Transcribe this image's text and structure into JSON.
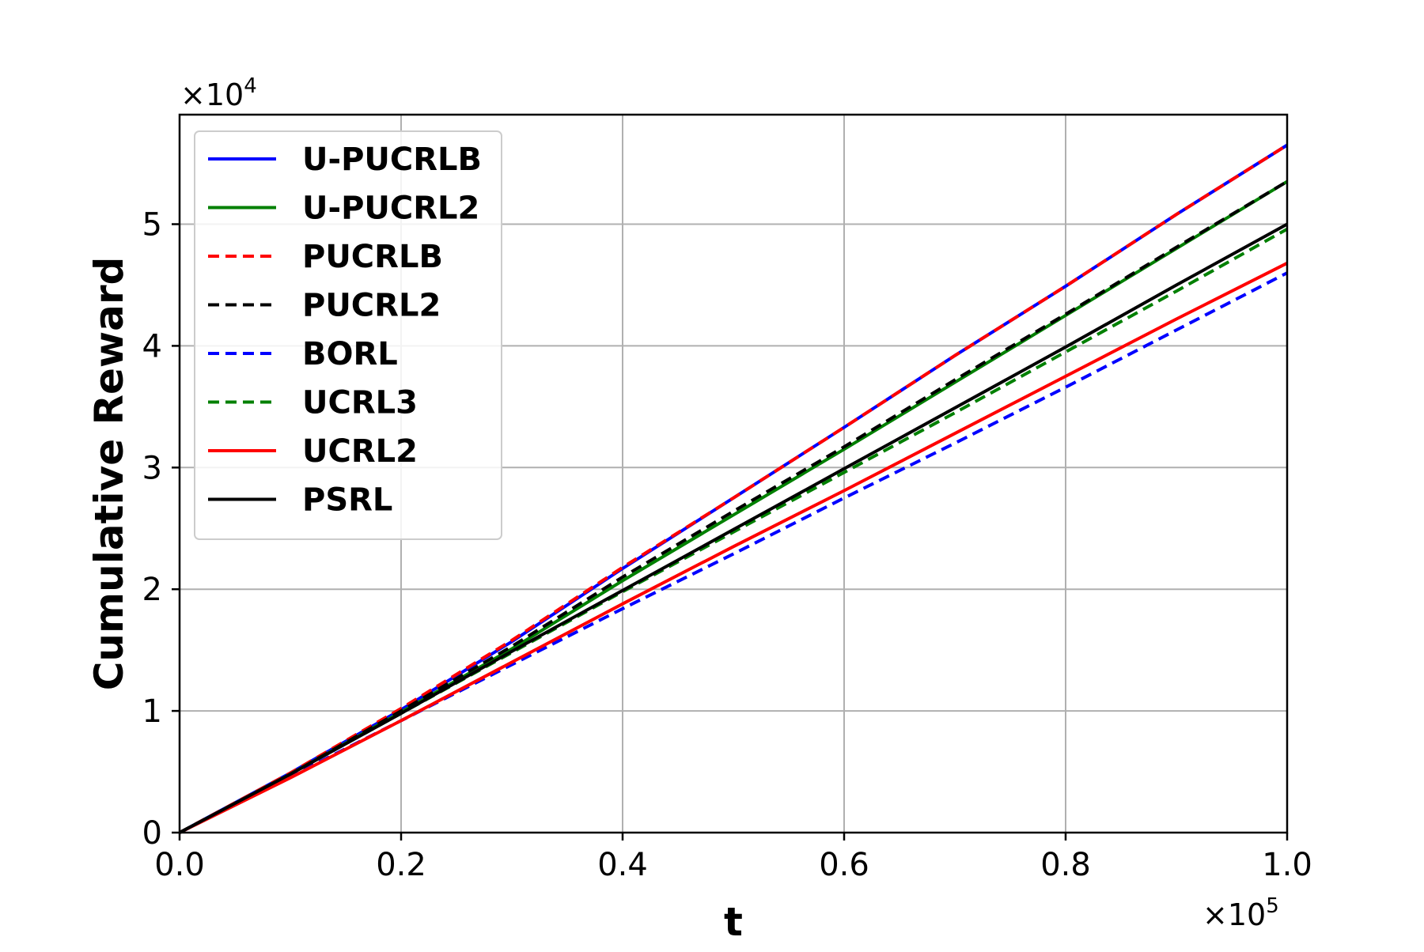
{
  "chart_data": {
    "type": "line",
    "xlabel": "t",
    "ylabel": "Cumulative Reward",
    "x_multiplier": {
      "base": "×10",
      "exp": "5"
    },
    "y_multiplier": {
      "base": "×10",
      "exp": "4"
    },
    "xlim": [
      0,
      1.0
    ],
    "ylim": [
      0,
      5.9
    ],
    "xticks": [
      0.0,
      0.2,
      0.4,
      0.6,
      0.8,
      1.0
    ],
    "xtick_labels": [
      "0.0",
      "0.2",
      "0.4",
      "0.6",
      "0.8",
      "1.0"
    ],
    "yticks": [
      0,
      1,
      2,
      3,
      4,
      5
    ],
    "ytick_labels": [
      "0",
      "1",
      "2",
      "3",
      "4",
      "5"
    ],
    "grid": true,
    "legend_position": "upper-left",
    "series": [
      {
        "name": "U-PUCRLB",
        "color": "#0000ff",
        "dash": "solid",
        "x": [
          0,
          0.1,
          0.2,
          0.3,
          0.4,
          0.5,
          0.6,
          0.7,
          0.8,
          0.9,
          1.0
        ],
        "y": [
          0,
          0.49,
          1.01,
          1.57,
          2.17,
          2.75,
          3.33,
          3.92,
          4.49,
          5.08,
          5.65
        ]
      },
      {
        "name": "U-PUCRL2",
        "color": "#008000",
        "dash": "solid",
        "x": [
          0,
          0.1,
          0.2,
          0.3,
          0.4,
          0.5,
          0.6,
          0.7,
          0.8,
          0.9,
          1.0
        ],
        "y": [
          0,
          0.48,
          0.99,
          1.51,
          2.07,
          2.61,
          3.15,
          3.7,
          4.25,
          4.8,
          5.35
        ]
      },
      {
        "name": "PUCRLB",
        "color": "#ff0000",
        "dash": "dashed",
        "x": [
          0,
          0.1,
          0.2,
          0.3,
          0.4,
          0.5,
          0.6,
          0.7,
          0.8,
          0.9,
          1.0
        ],
        "y": [
          0,
          0.49,
          1.02,
          1.58,
          2.18,
          2.75,
          3.33,
          3.92,
          4.49,
          5.08,
          5.65
        ]
      },
      {
        "name": "PUCRL2",
        "color": "#000000",
        "dash": "dashed",
        "x": [
          0,
          0.1,
          0.2,
          0.3,
          0.4,
          0.5,
          0.6,
          0.7,
          0.8,
          0.9,
          1.0
        ],
        "y": [
          0,
          0.48,
          1.0,
          1.53,
          2.1,
          2.64,
          3.17,
          3.72,
          4.26,
          4.81,
          5.35
        ]
      },
      {
        "name": "BORL",
        "color": "#0000ff",
        "dash": "dashed",
        "x": [
          0,
          0.1,
          0.2,
          0.3,
          0.4,
          0.5,
          0.6,
          0.7,
          0.8,
          0.9,
          1.0
        ],
        "y": [
          0,
          0.46,
          0.92,
          1.38,
          1.84,
          2.29,
          2.75,
          3.2,
          3.66,
          4.13,
          4.6
        ]
      },
      {
        "name": "UCRL3",
        "color": "#008000",
        "dash": "dashed",
        "x": [
          0,
          0.1,
          0.2,
          0.3,
          0.4,
          0.5,
          0.6,
          0.7,
          0.8,
          0.9,
          1.0
        ],
        "y": [
          0,
          0.48,
          0.98,
          1.48,
          1.98,
          2.47,
          2.96,
          3.45,
          3.95,
          4.45,
          4.96
        ]
      },
      {
        "name": "UCRL2",
        "color": "#ff0000",
        "dash": "solid",
        "x": [
          0,
          0.1,
          0.2,
          0.3,
          0.4,
          0.5,
          0.6,
          0.7,
          0.8,
          0.9,
          1.0
        ],
        "y": [
          0,
          0.45,
          0.92,
          1.4,
          1.88,
          2.35,
          2.81,
          3.28,
          3.75,
          4.22,
          4.68
        ]
      },
      {
        "name": "PSRL",
        "color": "#000000",
        "dash": "solid",
        "x": [
          0,
          0.1,
          0.2,
          0.3,
          0.4,
          0.5,
          0.6,
          0.7,
          0.8,
          0.9,
          1.0
        ],
        "y": [
          0,
          0.48,
          0.98,
          1.49,
          1.99,
          2.49,
          2.99,
          3.49,
          3.99,
          4.5,
          5.0
        ]
      }
    ]
  }
}
